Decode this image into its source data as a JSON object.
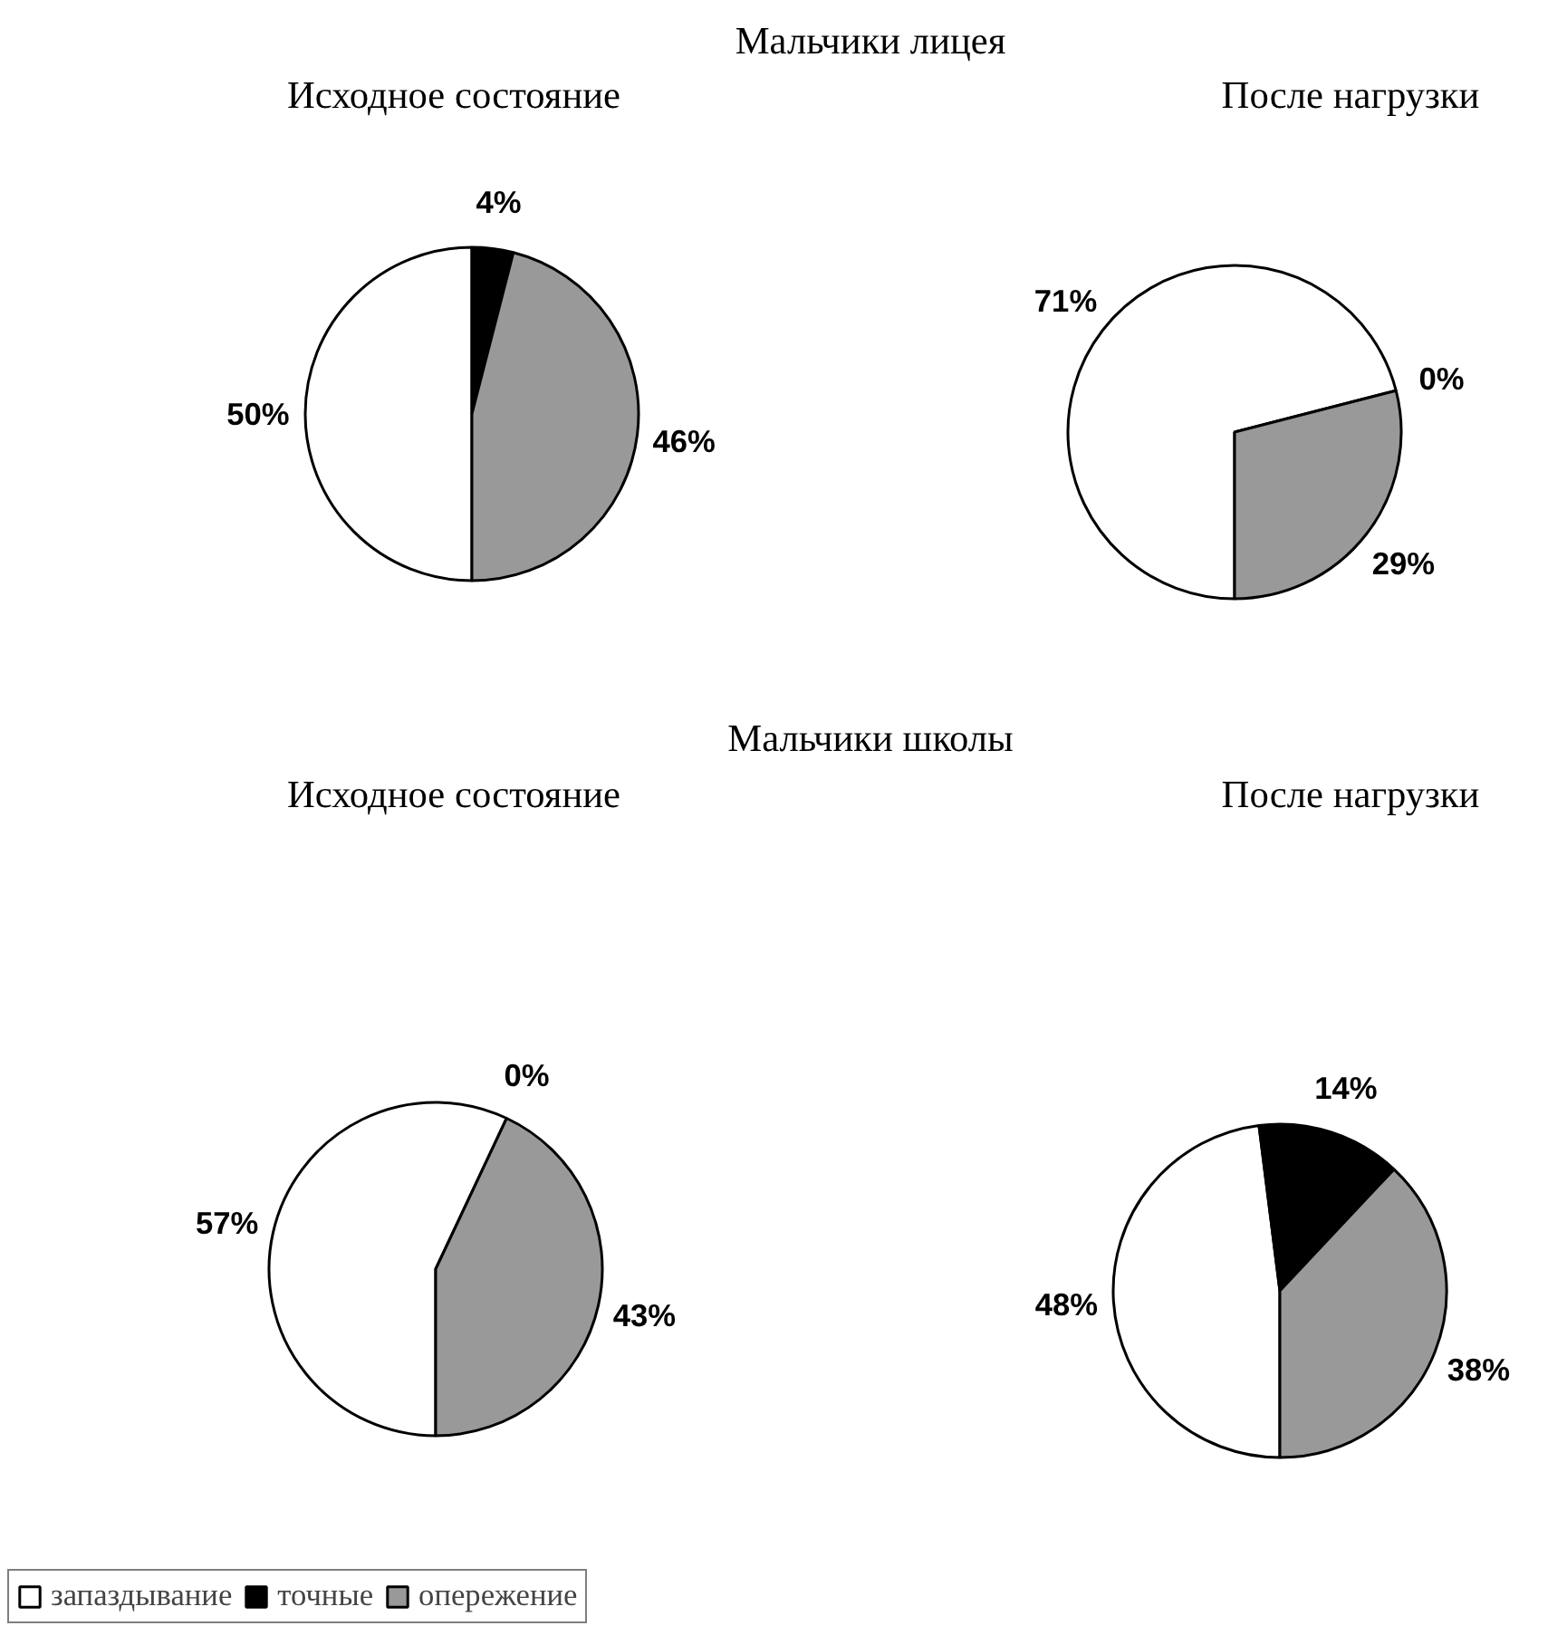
{
  "chart_data": [
    {
      "type": "pie",
      "title": "Мальчики лицея",
      "subtitle": "Исходное состояние",
      "categories": [
        "запаздывание",
        "точные",
        "опережение"
      ],
      "values": [
        50,
        4,
        46
      ],
      "colors": [
        "#ffffff",
        "#000000",
        "#999999"
      ],
      "value_labels": [
        "50%",
        "4%",
        "46%"
      ],
      "legend": "bottom left"
    },
    {
      "type": "pie",
      "subtitle": "После нагрузки",
      "categories": [
        null,
        null,
        null
      ],
      "values": [
        71,
        0,
        29
      ],
      "colors": [
        "#ffffff",
        "#000000",
        "#999999"
      ],
      "value_labels": [
        "71%",
        "0%",
        "29%"
      ]
    },
    {
      "type": "pie",
      "title": "Мальчики школы",
      "subtitle": "Исходное состояние",
      "categories": [
        null,
        null,
        null
      ],
      "values": [
        57,
        0,
        43
      ],
      "colors": [
        "#ffffff",
        "#000000",
        "#999999"
      ],
      "value_labels": [
        "57%",
        "0%",
        "43%"
      ]
    },
    {
      "type": "pie",
      "subtitle": "После нагрузки",
      "categories": [
        null,
        null,
        null
      ],
      "values": [
        48,
        14,
        38
      ],
      "colors": [
        "#ffffff",
        "#000000",
        "#999999"
      ],
      "value_labels": [
        "48%",
        "14%",
        "38%"
      ]
    }
  ]
}
